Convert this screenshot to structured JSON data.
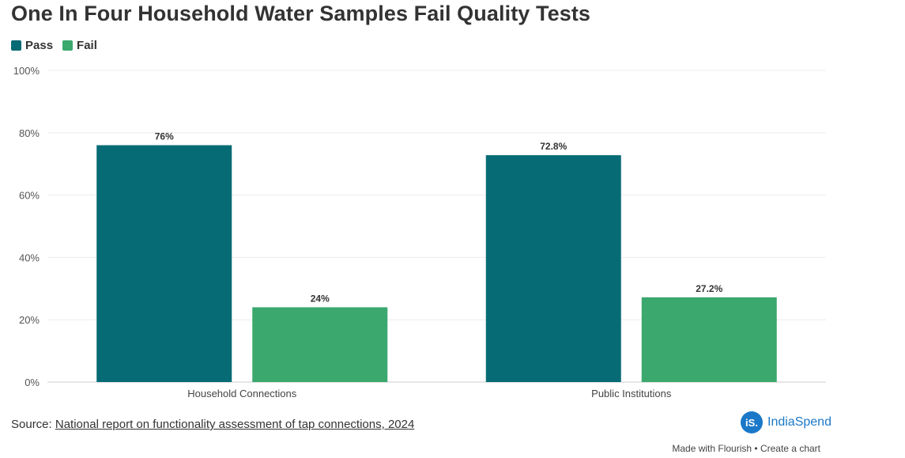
{
  "title": "One In Four Household Water Samples Fail Quality Tests",
  "legend": [
    {
      "label": "Pass",
      "color": "#066b74"
    },
    {
      "label": "Fail",
      "color": "#3ba86e"
    }
  ],
  "chart_data": {
    "type": "bar",
    "title": "One In Four Household Water Samples Fail Quality Tests",
    "categories": [
      "Household Connections",
      "Public Institutions"
    ],
    "series": [
      {
        "name": "Pass",
        "color": "#066b74",
        "values": [
          76,
          72.8
        ],
        "labels": [
          "76%",
          "72.8%"
        ]
      },
      {
        "name": "Fail",
        "color": "#3ba86e",
        "values": [
          24,
          27.2
        ],
        "labels": [
          "24%",
          "27.2%"
        ]
      }
    ],
    "ylim": [
      0,
      100
    ],
    "yticks": [
      0,
      20,
      40,
      60,
      80,
      100
    ],
    "ytick_labels": [
      "0%",
      "20%",
      "40%",
      "60%",
      "80%",
      "100%"
    ],
    "xlabel": "",
    "ylabel": "",
    "grid": true,
    "legend_position": "top-left"
  },
  "footer": {
    "source_prefix": "Source:",
    "source_link": "National report on functionality assessment of tap connections, 2024",
    "brand_logo": "iS.",
    "brand_name": "IndiaSpend",
    "made_with": "Made with Flourish",
    "separator": "•",
    "create_chart": "Create a chart"
  }
}
